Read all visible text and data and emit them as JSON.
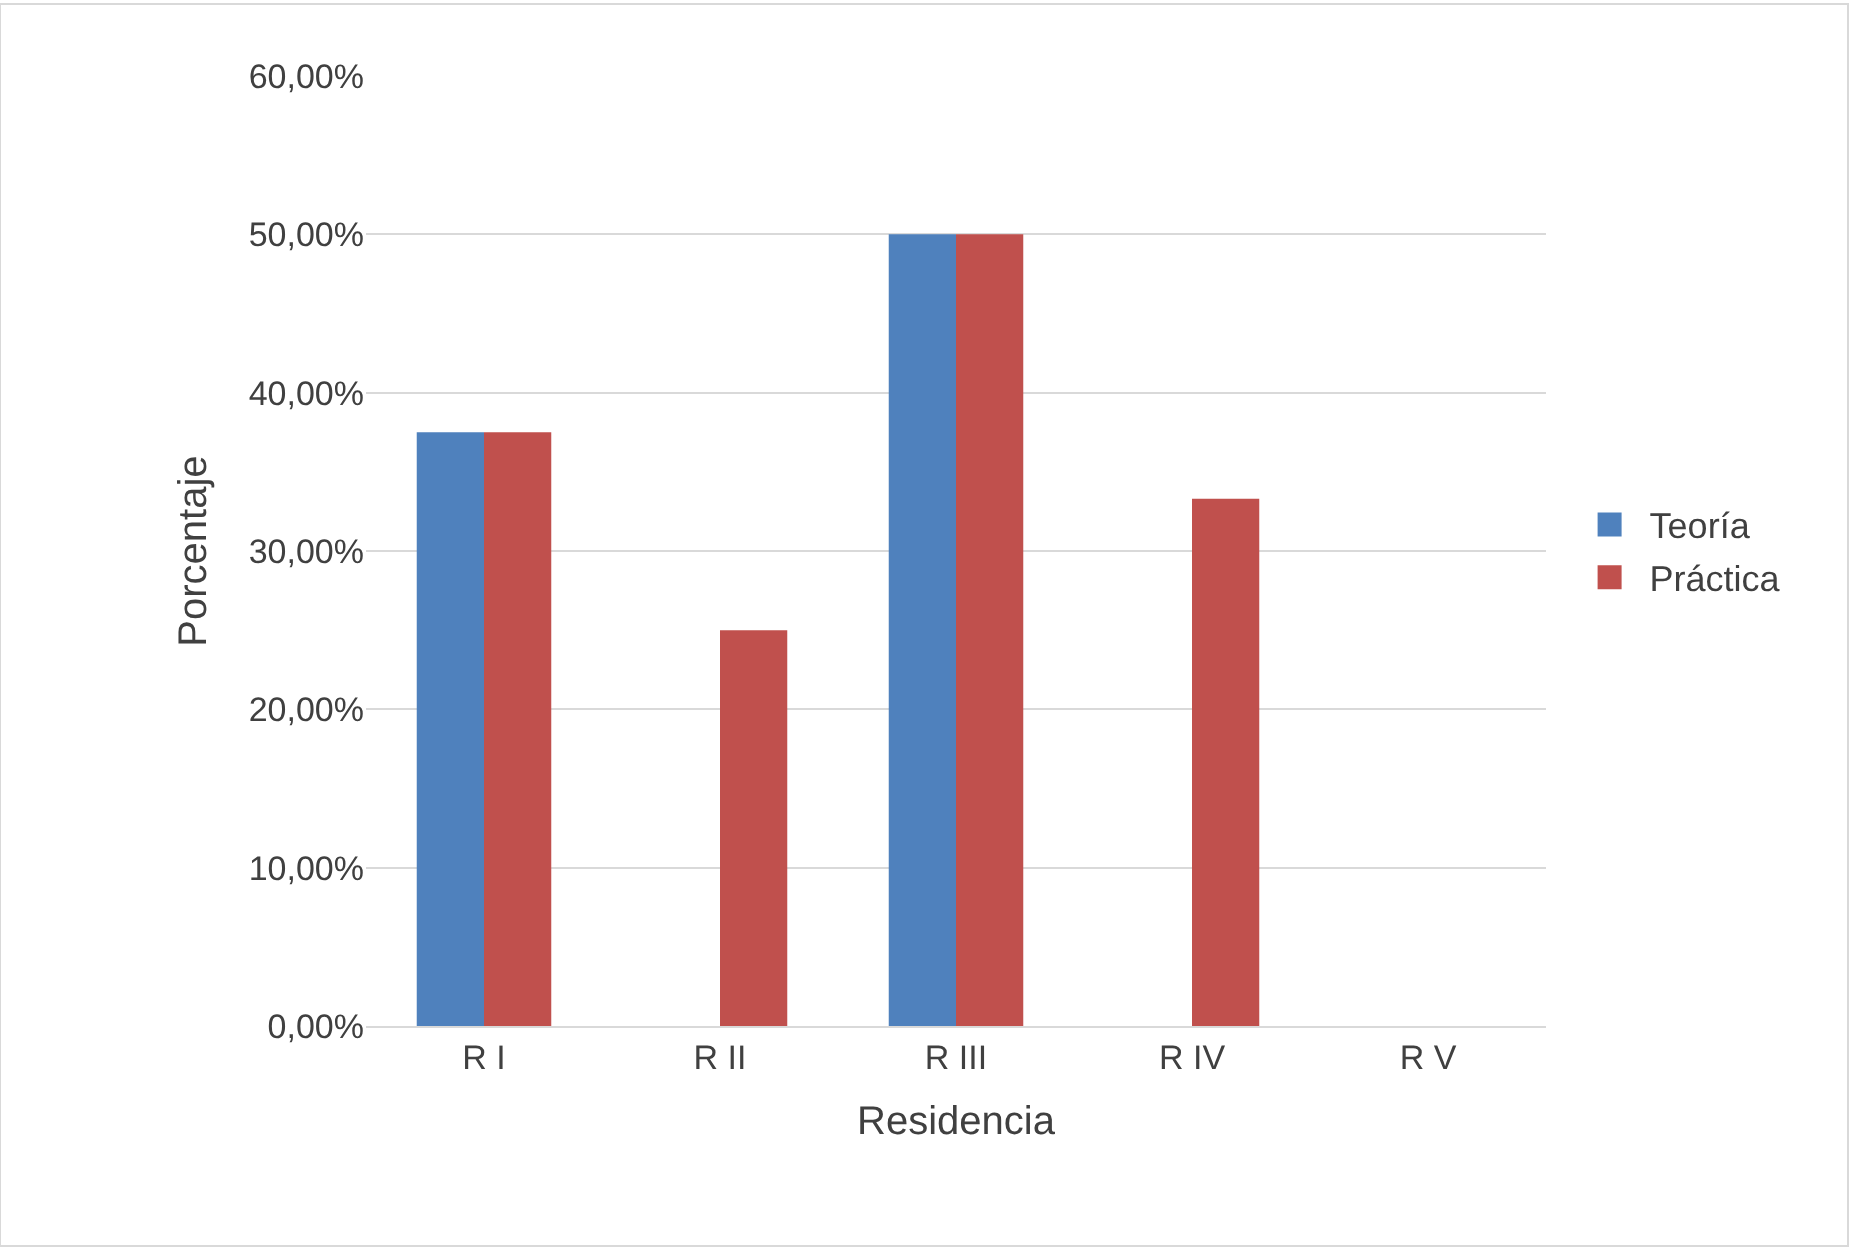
{
  "chart_data": {
    "type": "bar",
    "xlabel": "Residencia",
    "ylabel": "Porcentaje",
    "categories": [
      "R I",
      "R II",
      "R III",
      "R IV",
      "R V"
    ],
    "series": [
      {
        "name": "Teoría",
        "color": "#4f81bd",
        "values": [
          37.5,
          0,
          50,
          0,
          0
        ]
      },
      {
        "name": "Práctica",
        "color": "#c0504d",
        "values": [
          37.5,
          25,
          50,
          33.3,
          0
        ]
      }
    ],
    "ylim": [
      0,
      60
    ],
    "yticks": [
      {
        "value": 0,
        "label": "0,00%"
      },
      {
        "value": 10,
        "label": "10,00%"
      },
      {
        "value": 20,
        "label": "20,00%"
      },
      {
        "value": 30,
        "label": "30,00%"
      },
      {
        "value": 40,
        "label": "40,00%"
      },
      {
        "value": 50,
        "label": "50,00%"
      },
      {
        "value": 60,
        "label": "60,00%"
      }
    ],
    "grid": "y",
    "legend": "right"
  }
}
